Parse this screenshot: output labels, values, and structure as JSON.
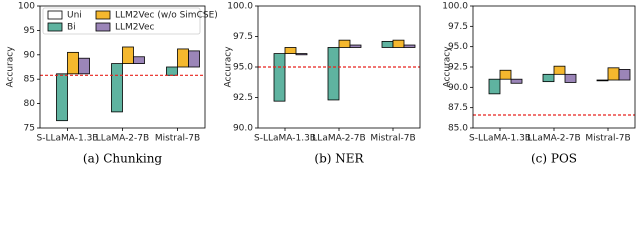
{
  "chart_data": [
    {
      "type": "bar",
      "caption": "(a) Chunking",
      "ylabel": "Accuracy",
      "categories": [
        "S-LLaMA-1.3B",
        "LLaMA-2-7B",
        "Mistral-7B"
      ],
      "series": [
        {
          "name": "Uni",
          "color": "#ffffff",
          "values": [
            86.1,
            88.2,
            87.5
          ]
        },
        {
          "name": "Bi",
          "color": "#5fb3a0",
          "values": [
            76.5,
            78.3,
            85.8
          ]
        },
        {
          "name": "LLM2Vec (w/o SimCSE)",
          "color": "#f5b82e",
          "values": [
            90.5,
            91.6,
            91.2
          ]
        },
        {
          "name": "LLM2Vec",
          "color": "#9b85b8",
          "values": [
            89.3,
            89.6,
            90.8
          ]
        }
      ],
      "ylim": [
        75,
        100
      ],
      "yticks": [
        75,
        80,
        85,
        90,
        95,
        100
      ],
      "reference_line": 85.8,
      "reference_color": "#e8231d",
      "legend": "upper left"
    },
    {
      "type": "bar",
      "caption": "(b) NER",
      "ylabel": "Accuracy",
      "categories": [
        "S-LLaMA-1.3B",
        "LLaMA-2-7B",
        "Mistral-7B"
      ],
      "series": [
        {
          "color": "#ffffff",
          "values": [
            96.1,
            96.6,
            96.6
          ]
        },
        {
          "color": "#5fb3a0",
          "values": [
            92.2,
            92.3,
            97.1
          ]
        },
        {
          "color": "#f5b82e",
          "values": [
            96.6,
            97.2,
            97.2
          ]
        },
        {
          "color": "#9b85b8",
          "values": [
            96.0,
            96.8,
            96.8
          ]
        }
      ],
      "ylim": [
        90,
        100
      ],
      "yticks": [
        {
          "value": 90,
          "label": "90.0"
        },
        {
          "value": 92.5,
          "label": "92.5"
        },
        {
          "value": 95,
          "label": "95.0"
        },
        {
          "value": 97.5,
          "label": "97.5"
        },
        {
          "value": 100,
          "label": "100.0"
        }
      ],
      "reference_line": 95.0,
      "reference_color": "#e8231d"
    },
    {
      "type": "bar",
      "caption": "(c) POS",
      "ylabel": "Accuracy",
      "categories": [
        "S-LLaMA-1.3B",
        "LLaMA-2-7B",
        "Mistral-7B"
      ],
      "series": [
        {
          "color": "#ffffff",
          "values": [
            91.0,
            91.6,
            90.9
          ]
        },
        {
          "color": "#5fb3a0",
          "values": [
            89.2,
            90.7,
            90.8
          ]
        },
        {
          "color": "#f5b82e",
          "values": [
            92.1,
            92.6,
            92.4
          ]
        },
        {
          "color": "#9b85b8",
          "values": [
            90.5,
            90.6,
            92.2
          ]
        }
      ],
      "ylim": [
        85,
        100
      ],
      "yticks": [
        {
          "value": 85,
          "label": "85.0"
        },
        {
          "value": 87.5,
          "label": "87.5"
        },
        {
          "value": 90,
          "label": "90.0"
        },
        {
          "value": 92.5,
          "label": "92.5"
        },
        {
          "value": 95,
          "label": "95.0"
        },
        {
          "value": 97.5,
          "label": "97.5"
        },
        {
          "value": 100,
          "label": "100.0"
        }
      ],
      "reference_line": 86.6,
      "reference_color": "#e8231d"
    }
  ]
}
